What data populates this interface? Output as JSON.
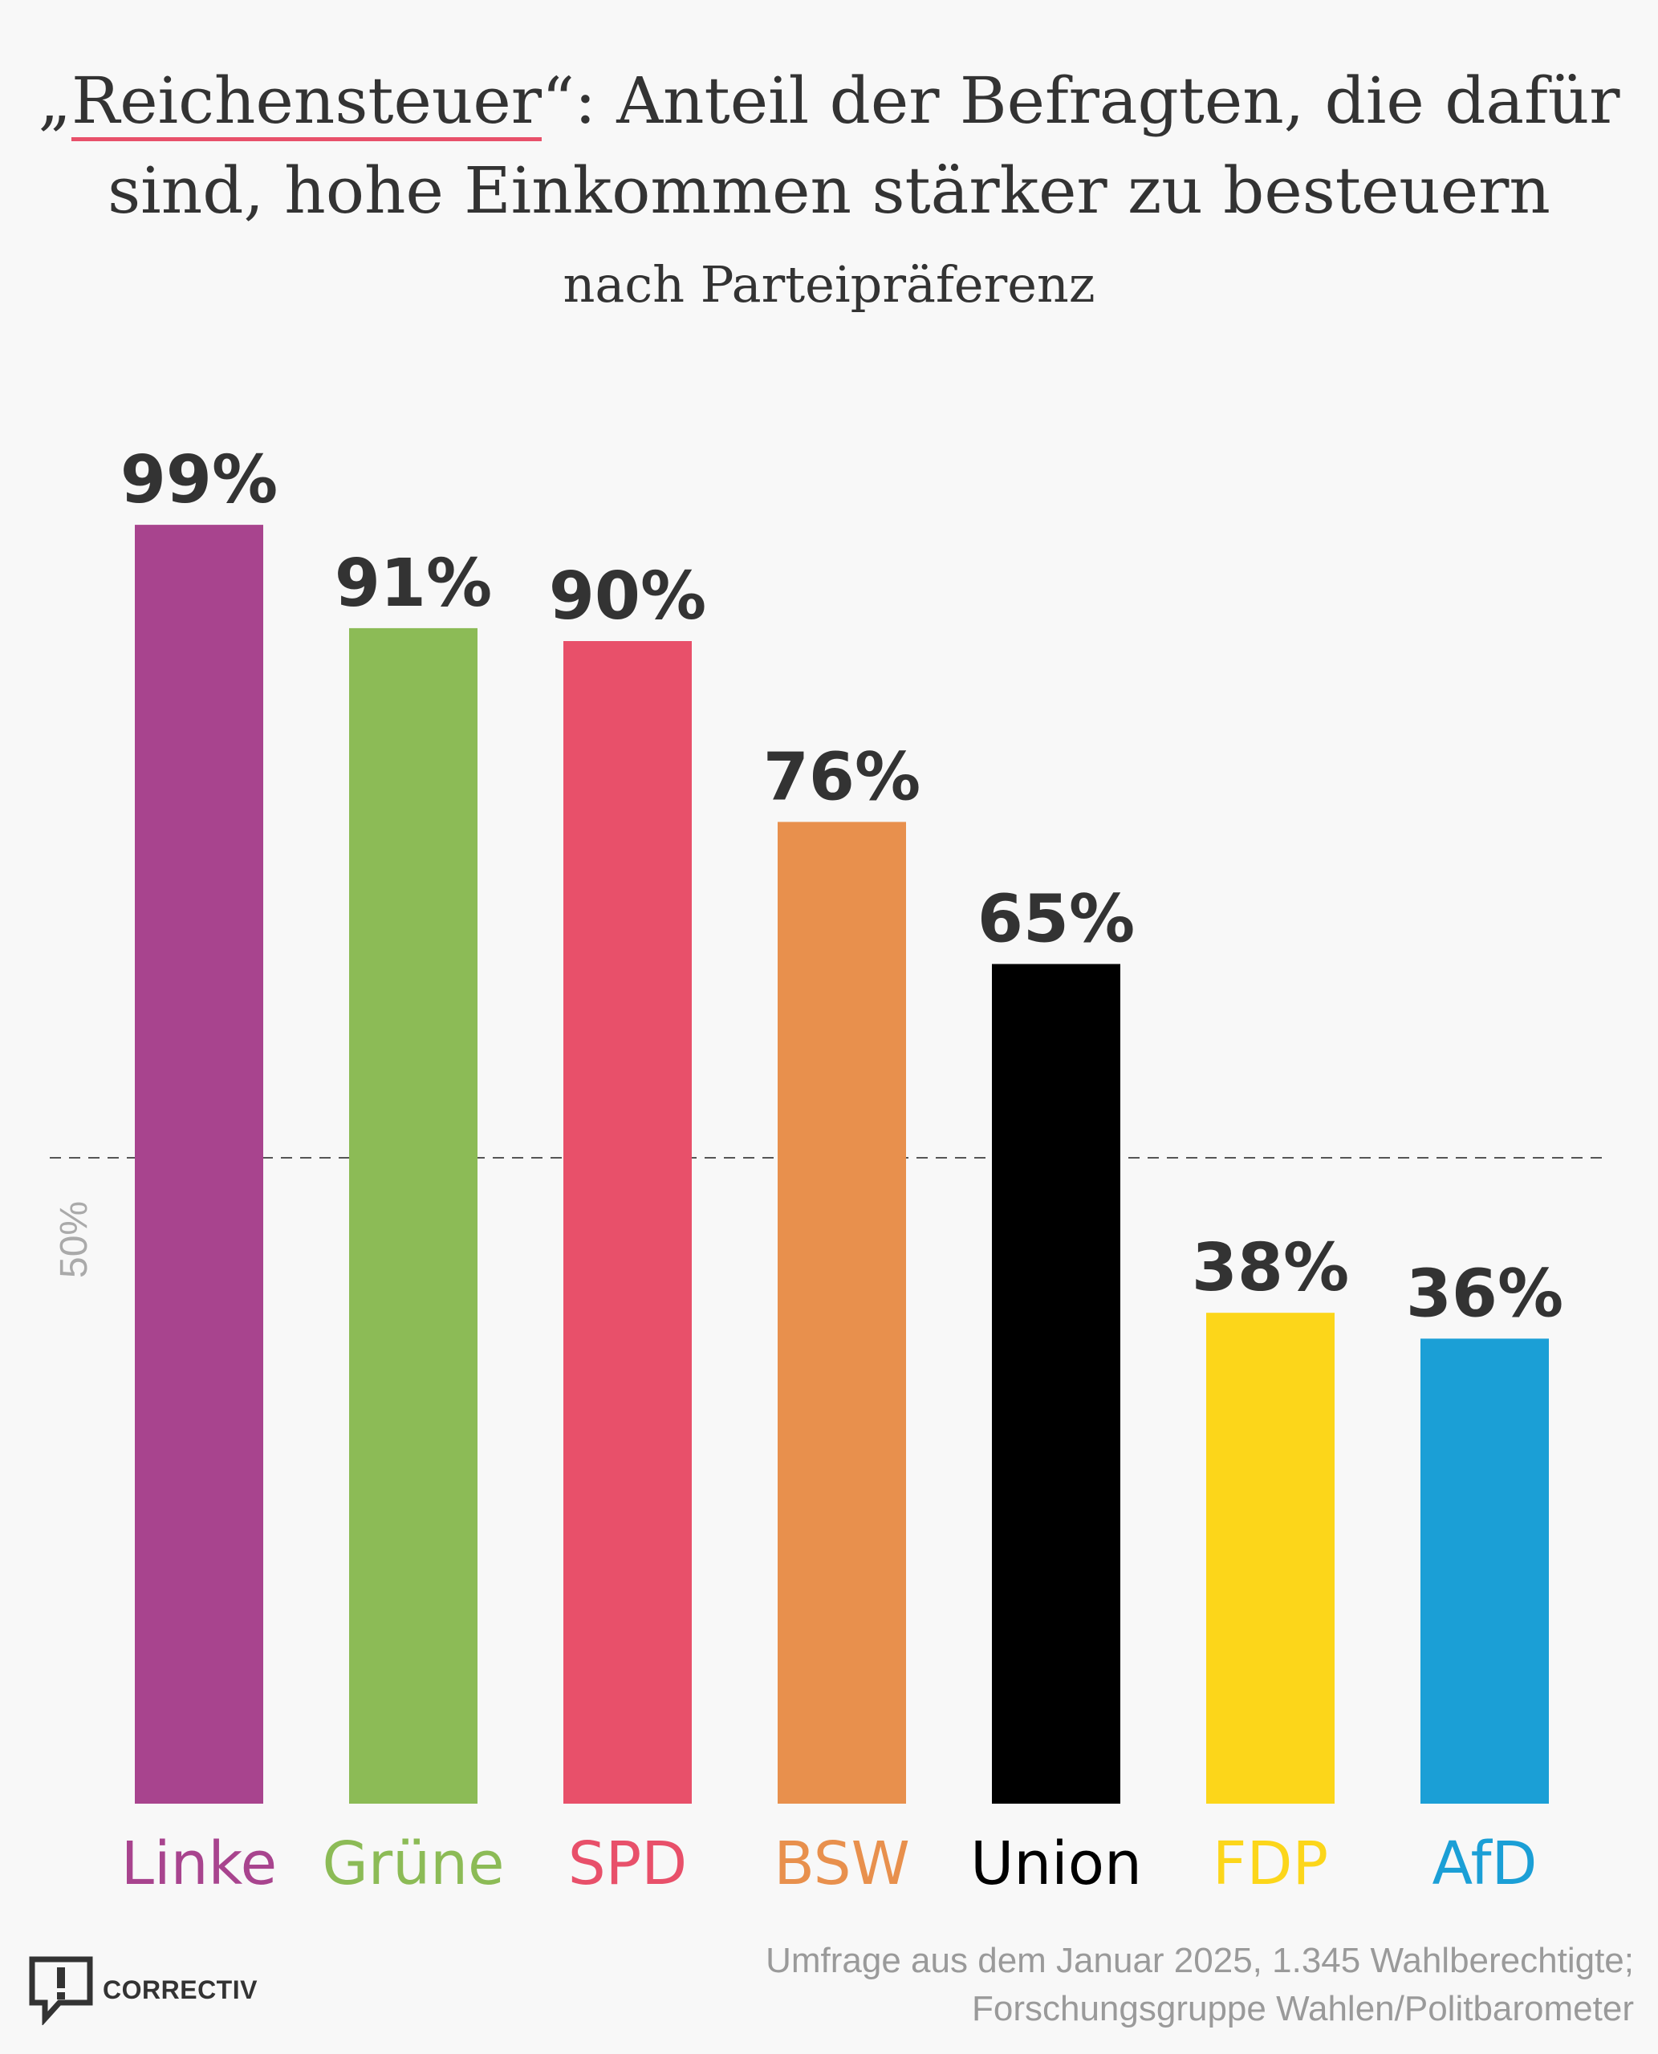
{
  "title": {
    "prefix": "„",
    "highlight": "Reichensteuer",
    "line1_rest": "“: Anteil der Befragten, die dafür",
    "line2": "sind, hohe Einkommen stärker zu besteuern"
  },
  "subtitle": "nach Parteipräferenz",
  "chart_data": {
    "type": "bar",
    "title": "„Reichensteuer“: Anteil der Befragten, die dafür sind, hohe Einkommen stärker zu besteuern",
    "subtitle": "nach Parteipräferenz",
    "xlabel": "",
    "ylabel": "",
    "ylim": [
      0,
      100
    ],
    "grid": false,
    "reference_line": {
      "value": 50,
      "label": "50%"
    },
    "categories": [
      "Linke",
      "Grüne",
      "SPD",
      "BSW",
      "Union",
      "FDP",
      "AfD"
    ],
    "values": [
      99,
      91,
      90,
      76,
      65,
      38,
      36
    ],
    "value_labels": [
      "99%",
      "91%",
      "90%",
      "76%",
      "65%",
      "38%",
      "36%"
    ],
    "colors": [
      "#a8448e",
      "#8cbb56",
      "#e8506a",
      "#e8904d",
      "#000000",
      "#fcd61a",
      "#1b9fd6"
    ]
  },
  "source": {
    "line1": "Umfrage aus dem Januar 2025, 1.345 Wahlberechtigte;",
    "line2": "Forschungsgruppe Wahlen/Politbarometer"
  },
  "logo": {
    "text": "CORRECTIV",
    "icon": "speech-bubble-exclamation-icon"
  }
}
